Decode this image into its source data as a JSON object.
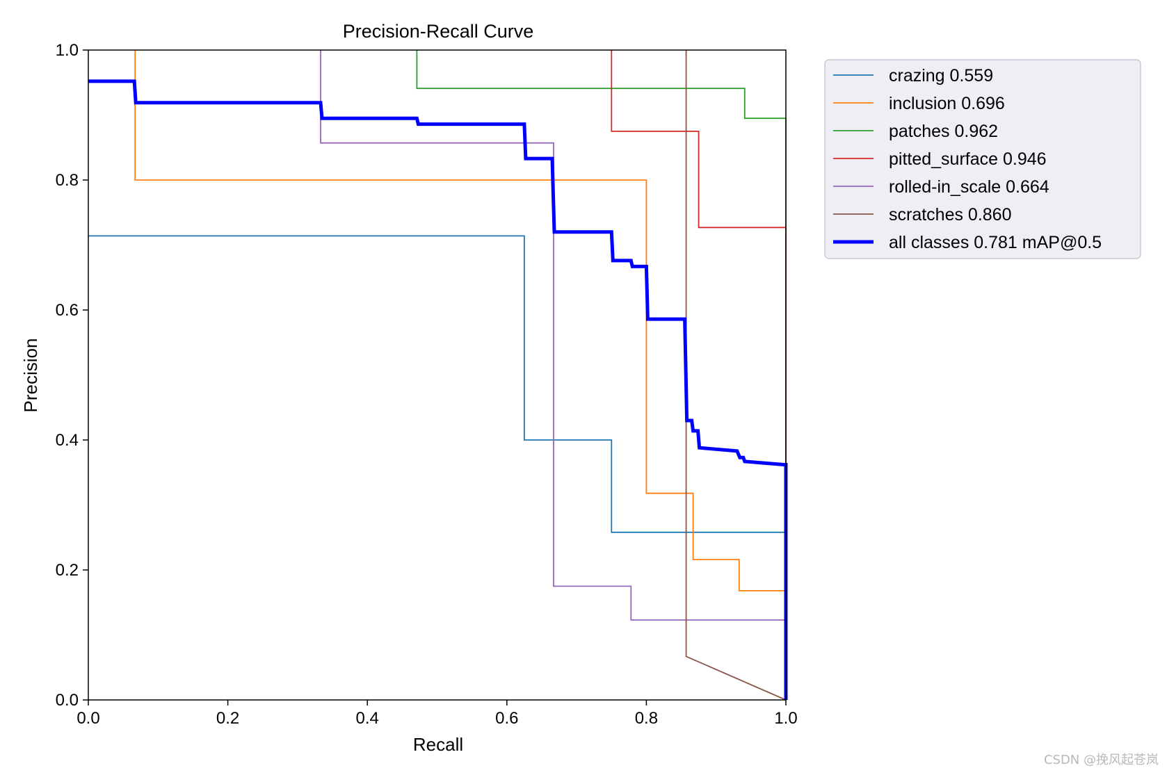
{
  "chart_data": {
    "type": "line",
    "title": "Precision-Recall Curve",
    "xlabel": "Recall",
    "ylabel": "Precision",
    "xlim": [
      0,
      1
    ],
    "ylim": [
      0,
      1
    ],
    "xticks": [
      "0.0",
      "0.2",
      "0.4",
      "0.6",
      "0.8",
      "1.0"
    ],
    "yticks": [
      "0.0",
      "0.2",
      "0.4",
      "0.6",
      "0.8",
      "1.0"
    ],
    "legend_position": "outside-top-right",
    "series": [
      {
        "name": "crazing 0.559",
        "color": "#1f77b4",
        "emphasis": "thin",
        "points": [
          [
            0,
            0.714
          ],
          [
            0.625,
            0.714
          ],
          [
            0.625,
            0.4
          ],
          [
            0.75,
            0.4
          ],
          [
            0.75,
            0.258
          ],
          [
            1.0,
            0.258
          ],
          [
            1.0,
            0
          ]
        ]
      },
      {
        "name": "inclusion 0.696",
        "color": "#ff7f0e",
        "emphasis": "thin",
        "points": [
          [
            0.067,
            1.0
          ],
          [
            0.067,
            0.8
          ],
          [
            0.8,
            0.8
          ],
          [
            0.8,
            0.318
          ],
          [
            0.867,
            0.318
          ],
          [
            0.867,
            0.216
          ],
          [
            0.933,
            0.216
          ],
          [
            0.933,
            0.168
          ],
          [
            1.0,
            0.168
          ],
          [
            1.0,
            0
          ]
        ]
      },
      {
        "name": "patches 0.962",
        "color": "#2ca02c",
        "emphasis": "thin",
        "points": [
          [
            0.471,
            1.0
          ],
          [
            0.471,
            0.941
          ],
          [
            0.941,
            0.941
          ],
          [
            0.941,
            0.895
          ],
          [
            1.0,
            0.895
          ],
          [
            1.0,
            0
          ]
        ]
      },
      {
        "name": "pitted_surface 0.946",
        "color": "#d62728",
        "emphasis": "thin",
        "points": [
          [
            0.75,
            1.0
          ],
          [
            0.75,
            0.875
          ],
          [
            0.875,
            0.875
          ],
          [
            0.875,
            0.727
          ],
          [
            1.0,
            0.727
          ],
          [
            1.0,
            0
          ]
        ]
      },
      {
        "name": "rolled-in_scale 0.664",
        "color": "#9467bd",
        "emphasis": "thin",
        "points": [
          [
            0.333,
            1.0
          ],
          [
            0.333,
            0.857
          ],
          [
            0.667,
            0.857
          ],
          [
            0.667,
            0.175
          ],
          [
            0.778,
            0.175
          ],
          [
            0.778,
            0.123
          ],
          [
            1.0,
            0.123
          ],
          [
            1.0,
            0
          ]
        ]
      },
      {
        "name": "scratches 0.860",
        "color": "#8c564b",
        "emphasis": "thin",
        "points": [
          [
            0.857,
            1.0
          ],
          [
            0.857,
            0.067
          ],
          [
            1.0,
            0.0
          ]
        ]
      },
      {
        "name": "all classes 0.781 mAP@0.5",
        "color": "#0000ff",
        "emphasis": "bold",
        "points": [
          [
            0,
            0.952
          ],
          [
            0.066,
            0.952
          ],
          [
            0.068,
            0.919
          ],
          [
            0.333,
            0.919
          ],
          [
            0.335,
            0.895
          ],
          [
            0.471,
            0.895
          ],
          [
            0.473,
            0.886
          ],
          [
            0.625,
            0.886
          ],
          [
            0.627,
            0.833
          ],
          [
            0.665,
            0.833
          ],
          [
            0.668,
            0.72
          ],
          [
            0.75,
            0.72
          ],
          [
            0.752,
            0.676
          ],
          [
            0.778,
            0.676
          ],
          [
            0.78,
            0.667
          ],
          [
            0.8,
            0.667
          ],
          [
            0.802,
            0.586
          ],
          [
            0.855,
            0.586
          ],
          [
            0.858,
            0.43
          ],
          [
            0.865,
            0.43
          ],
          [
            0.867,
            0.414
          ],
          [
            0.874,
            0.414
          ],
          [
            0.876,
            0.388
          ],
          [
            0.93,
            0.383
          ],
          [
            0.934,
            0.373
          ],
          [
            0.939,
            0.373
          ],
          [
            0.941,
            0.367
          ],
          [
            0.997,
            0.362
          ],
          [
            1.0,
            0.362
          ],
          [
            1.0,
            0
          ]
        ]
      }
    ]
  },
  "watermark": "CSDN @挽风起苍岚"
}
